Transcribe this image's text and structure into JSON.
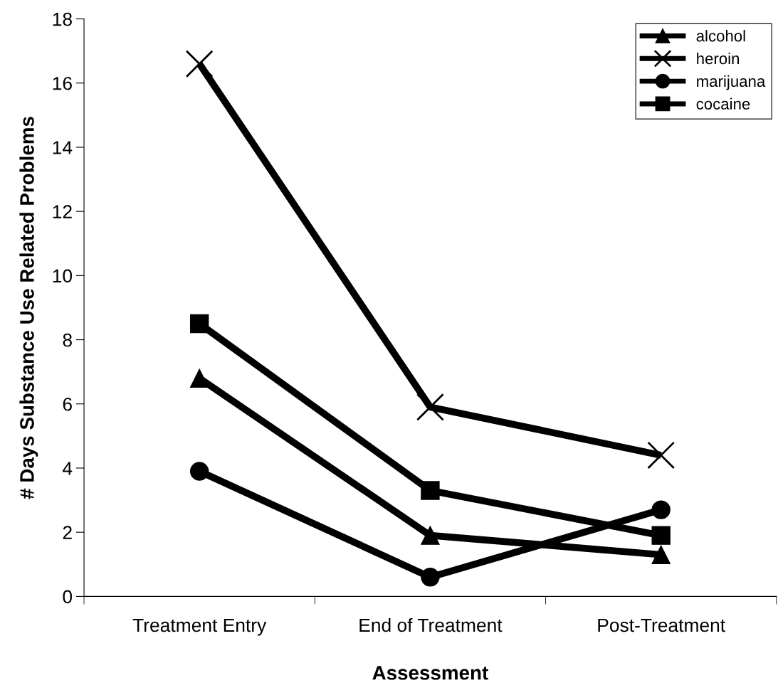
{
  "chart_data": {
    "type": "line",
    "xlabel": "Assessment",
    "ylabel": "# Days Substance Use Related Problems",
    "categories": [
      "Treatment Entry",
      "End of Treatment",
      "Post-Treatment"
    ],
    "series": [
      {
        "name": "alcohol",
        "color": "#000000",
        "marker": "triangle",
        "values": [
          6.8,
          1.9,
          1.3
        ]
      },
      {
        "name": "heroin",
        "color": "#000000",
        "marker": "cross",
        "values": [
          16.6,
          5.9,
          4.4
        ]
      },
      {
        "name": "marijuana",
        "color": "#000000",
        "marker": "circle",
        "values": [
          3.9,
          0.6,
          2.7
        ]
      },
      {
        "name": "cocaine",
        "color": "#000000",
        "marker": "square",
        "values": [
          8.5,
          3.3,
          1.9
        ]
      }
    ],
    "ylim": [
      0,
      18
    ],
    "yticks": [
      0,
      2,
      4,
      6,
      8,
      10,
      12,
      14,
      16,
      18
    ],
    "grid": false,
    "legend": "top right",
    "line_style": "solid"
  }
}
